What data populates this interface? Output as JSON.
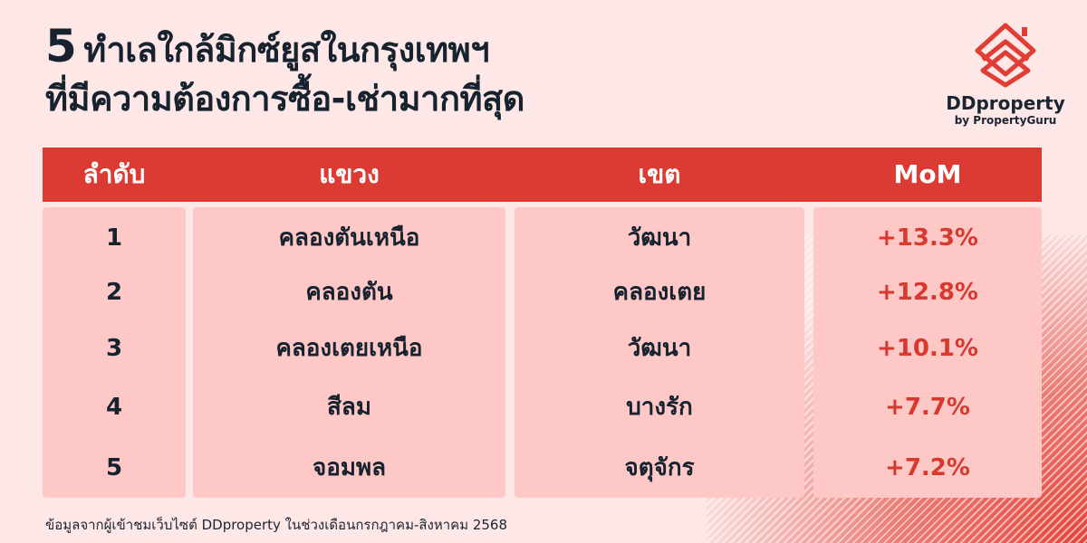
{
  "title": {
    "number": "5",
    "line1": "ทำเลใกล้มิกซ์ยูสในกรุงเทพฯ",
    "line2": "ที่มีความต้องการซื้อ-เช่ามากที่สุด"
  },
  "logo": {
    "brand": "DDproperty",
    "sub": "by PropertyGuru",
    "icon": "house-layers-icon",
    "color": "#e03d34"
  },
  "table": {
    "headers": [
      "ลำดับ",
      "แขวง",
      "เขต",
      "MoM"
    ],
    "rows": [
      {
        "rank": "1",
        "subdistrict": "คลองตันเหนือ",
        "district": "วัฒนา",
        "mom": "+13.3%"
      },
      {
        "rank": "2",
        "subdistrict": "คลองตัน",
        "district": "คลองเตย",
        "mom": "+12.8%"
      },
      {
        "rank": "3",
        "subdistrict": "คลองเตยเหนือ",
        "district": "วัฒนา",
        "mom": "+10.1%"
      },
      {
        "rank": "4",
        "subdistrict": "สีลม",
        "district": "บางรัก",
        "mom": "+7.7%"
      },
      {
        "rank": "5",
        "subdistrict": "จอมพล",
        "district": "จตุจักร",
        "mom": "+7.2%"
      }
    ]
  },
  "footnote": "ข้อมูลจากผู้เข้าชมเว็บไซต์ DDproperty ในช่วงเดือนกรกฎาคม-สิงหาคม 2568",
  "colors": {
    "background": "#fde7e7",
    "header": "#dc3b33",
    "cell": "#fdc8c6",
    "accent": "#d8392f",
    "text": "#17222f"
  }
}
